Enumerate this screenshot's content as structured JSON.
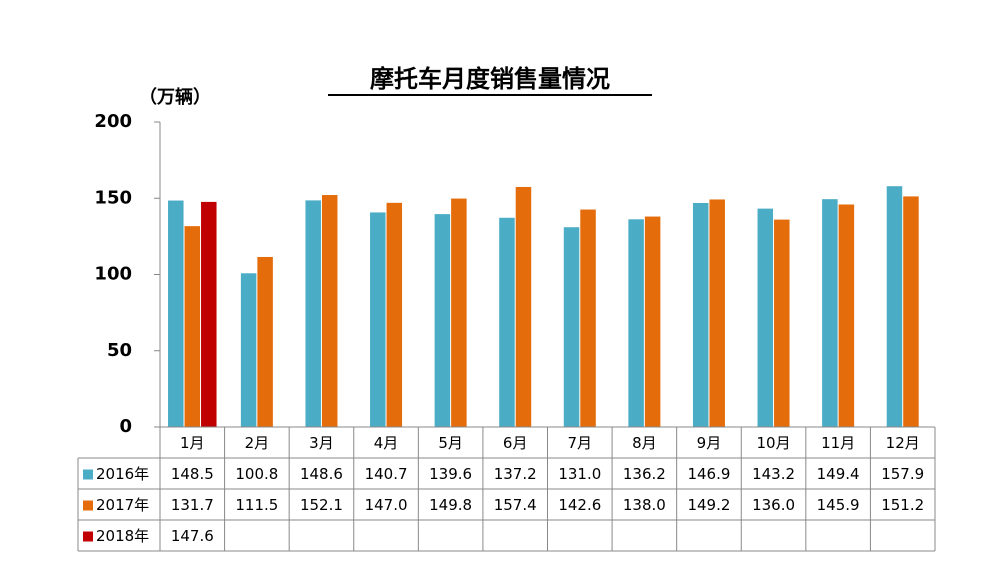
{
  "chart_data": {
    "type": "bar",
    "title": "摩托车月度销售量情况",
    "y_label": "（万辆）",
    "categories": [
      "1月",
      "2月",
      "3月",
      "4月",
      "5月",
      "6月",
      "7月",
      "8月",
      "9月",
      "10月",
      "11月",
      "12月"
    ],
    "series": [
      {
        "name": "2016年",
        "color": "#4bacc6",
        "values": [
          148.5,
          100.8,
          148.6,
          140.7,
          139.6,
          137.2,
          131.0,
          136.2,
          146.9,
          143.2,
          149.4,
          157.9
        ],
        "value_labels": [
          "148.5",
          "100.8",
          "148.6",
          "140.7",
          "139.6",
          "137.2",
          "131.0",
          "136.2",
          "146.9",
          "143.2",
          "149.4",
          "157.9"
        ]
      },
      {
        "name": "2017年",
        "color": "#e46c0a",
        "values": [
          131.7,
          111.5,
          152.1,
          147.0,
          149.8,
          157.4,
          142.6,
          138.0,
          149.2,
          136.0,
          145.9,
          151.2
        ],
        "value_labels": [
          "131.7",
          "111.5",
          "152.1",
          "147.0",
          "149.8",
          "157.4",
          "142.6",
          "138.0",
          "149.2",
          "136.0",
          "145.9",
          "151.2"
        ]
      },
      {
        "name": "2018年",
        "color": "#c00000",
        "values": [
          147.6,
          null,
          null,
          null,
          null,
          null,
          null,
          null,
          null,
          null,
          null,
          null
        ],
        "value_labels": [
          "147.6",
          null,
          null,
          null,
          null,
          null,
          null,
          null,
          null,
          null,
          null,
          null
        ]
      }
    ],
    "ylim": [
      0,
      200
    ],
    "yticks": [
      0,
      50,
      100,
      150,
      200
    ],
    "grid": false
  }
}
